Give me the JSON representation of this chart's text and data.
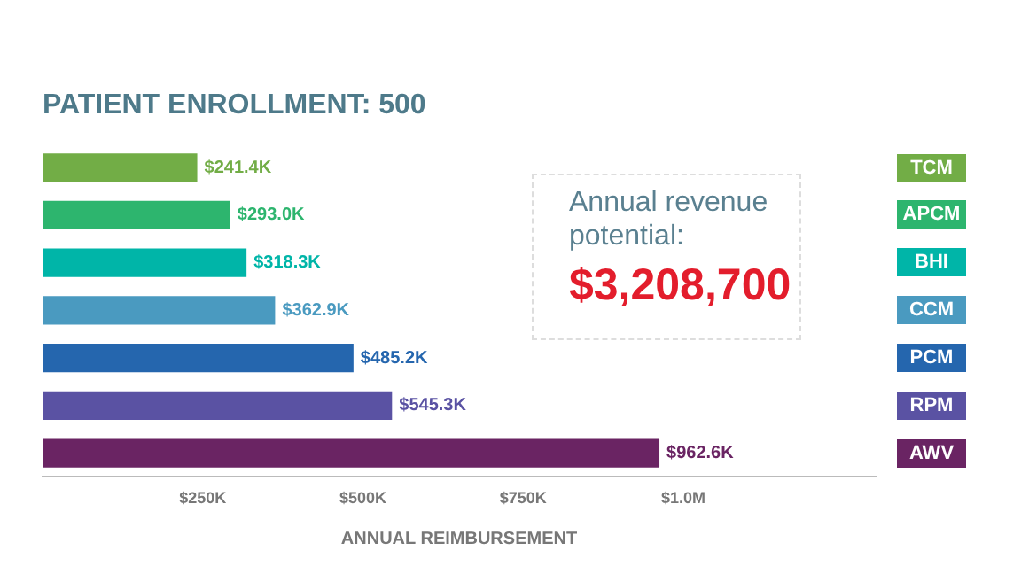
{
  "chart_data": {
    "type": "bar",
    "orientation": "horizontal",
    "title": "PATIENT ENROLLMENT: 500",
    "xlabel": "ANNUAL REIMBURSEMENT",
    "categories": [
      "TCM",
      "APCM",
      "BHI",
      "CCM",
      "PCM",
      "RPM",
      "AWV"
    ],
    "values": [
      241400,
      293000,
      318300,
      362900,
      485200,
      545300,
      962600
    ],
    "colors": [
      "#72ad46",
      "#2db56e",
      "#00b5a8",
      "#4a9ac0",
      "#2566ae",
      "#5a52a3",
      "#6a2463"
    ],
    "value_labels": [
      "$241.4K",
      "$293.0K",
      "$318.3K",
      "$362.9K",
      "$485.2K",
      "$545.3K",
      "$962.6K"
    ],
    "xlim": [
      0,
      1300000
    ],
    "xticks": [
      {
        "value": 250000,
        "label": "$250K"
      },
      {
        "value": 500000,
        "label": "$500K"
      },
      {
        "value": 750000,
        "label": "$750K"
      },
      {
        "value": 1000000,
        "label": "$1.0M"
      }
    ],
    "grid": false,
    "legend": false,
    "annotations": [
      "Annual revenue potential:",
      "$3,208,700"
    ]
  }
}
